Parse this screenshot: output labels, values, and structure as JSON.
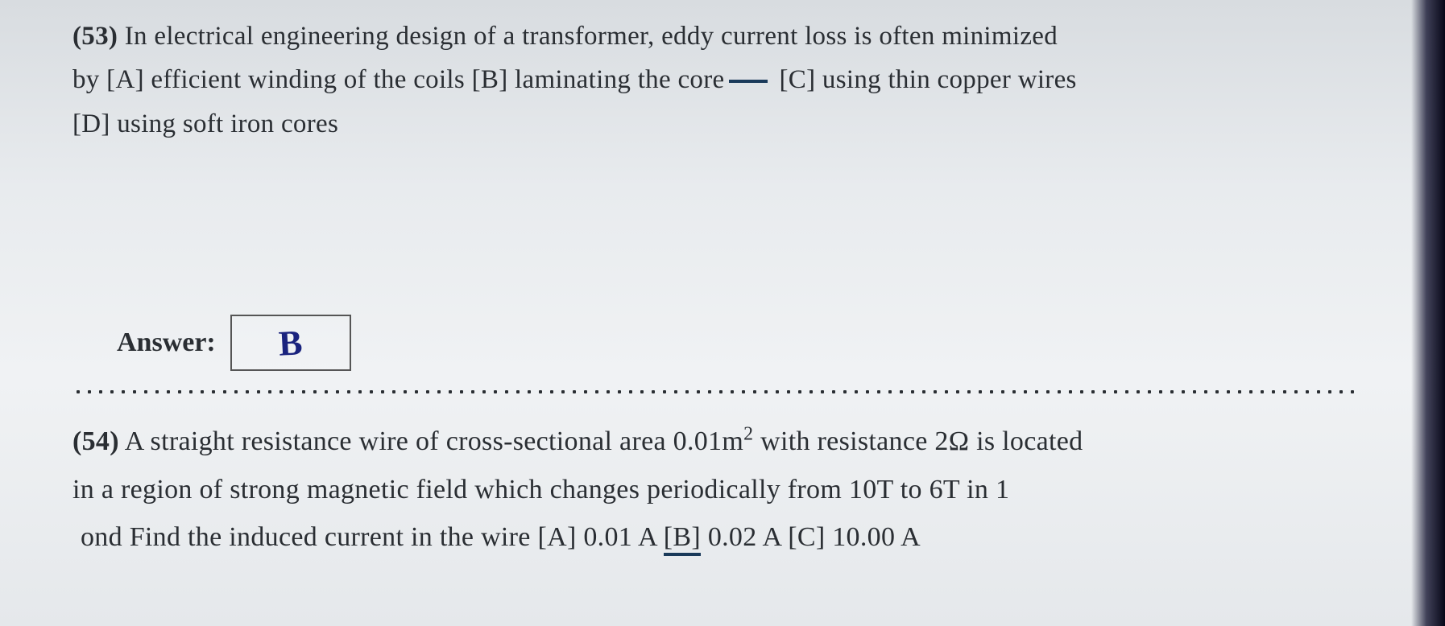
{
  "q53": {
    "number": "(53)",
    "stem_l1": " In electrical engineering design of a transformer, eddy current loss is often minimized",
    "stem_l2_prefix": "by [A] efficient winding of the coils  [B] laminating the core",
    "stem_l2_suffix": "[C] using thin copper wires",
    "stem_l3": "[D] using soft iron cores"
  },
  "answer": {
    "label": "Answer:",
    "value": "B"
  },
  "q54": {
    "number": "(54)",
    "l1_before_sup": " A straight resistance wire of cross-sectional area 0.01m",
    "l1_sup": "2",
    "l1_after_sup": " with resistance 2Ω is located",
    "l2": "in a region of strong magnetic field which changes periodically from 10T to 6T in 1",
    "l3_prefix": "ond Find the induced current in the wire   [A] 0.01 A   ",
    "l3_b": "[B]",
    "l3_b_val": " 0.02 A   ",
    "l3_c": "[C] 10.00 A"
  }
}
